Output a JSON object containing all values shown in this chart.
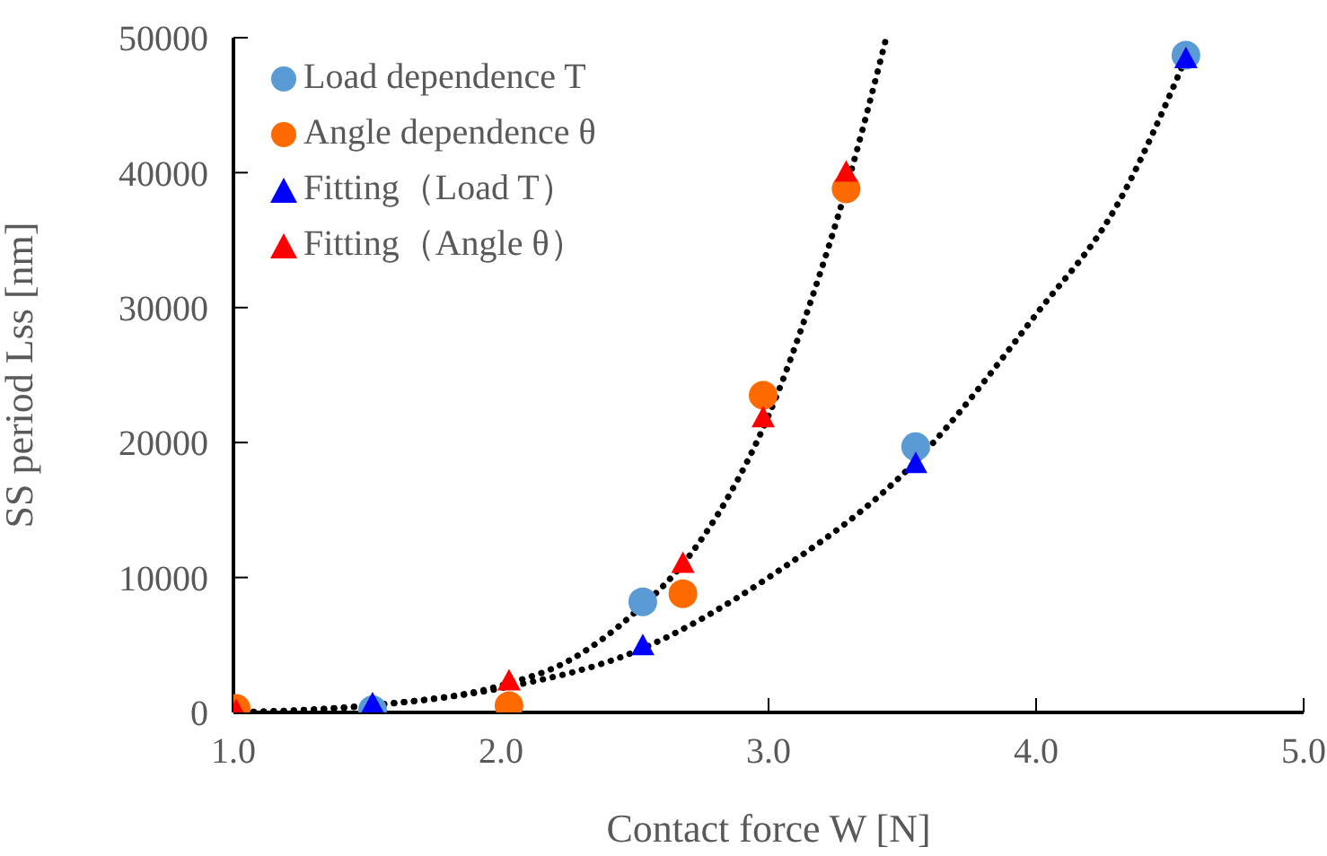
{
  "chart_data": {
    "type": "scatter",
    "xlabel": "Contact force W [N]",
    "ylabel": "SS period Lss [nm]",
    "xlim": [
      1,
      5
    ],
    "xticks": [
      {
        "value": 1,
        "label": "1.0"
      },
      {
        "value": 2,
        "label": "2.0"
      },
      {
        "value": 3,
        "label": "3.0"
      },
      {
        "value": 4,
        "label": "4.0"
      },
      {
        "value": 5,
        "label": "5.0"
      }
    ],
    "ylim": [
      0,
      50000
    ],
    "yticks": [
      0,
      10000,
      20000,
      30000,
      40000,
      50000
    ],
    "grid": false,
    "legend": "top left",
    "series": [
      {
        "name": "Load dependence T",
        "type": "scatter",
        "marker": "circle",
        "color": "#5b9bd5",
        "x": [
          1.52,
          2.53,
          3.55,
          4.56
        ],
        "values": [
          200,
          8200,
          19700,
          48700
        ]
      },
      {
        "name": "Angle dependence θ",
        "type": "scatter",
        "marker": "circle",
        "color": "#ff6a00",
        "x": [
          1.01,
          2.03,
          2.68,
          2.98,
          3.29
        ],
        "values": [
          300,
          500,
          8800,
          23500,
          38800
        ]
      },
      {
        "name": "Fitting（Load T）",
        "type": "scatter",
        "marker": "triangle",
        "color": "#0000ff",
        "x": [
          1.52,
          2.53,
          3.55,
          4.56
        ],
        "values": [
          600,
          4900,
          18400,
          48400
        ]
      },
      {
        "name": "Fitting（Angle θ）",
        "type": "scatter",
        "marker": "triangle",
        "color": "#ff0000",
        "x": [
          1.01,
          2.03,
          2.68,
          2.98,
          3.29
        ],
        "values": [
          100,
          2300,
          11000,
          21800,
          40000
        ]
      },
      {
        "type": "line",
        "marker": "none",
        "line_style": "dotted",
        "color": "#000000",
        "x": [
          1.0,
          1.5,
          2.0,
          2.25,
          2.5,
          2.7,
          2.85,
          3.0,
          3.15,
          3.3,
          3.44
        ],
        "values": [
          0,
          500,
          2000,
          3800,
          7400,
          11500,
          16000,
          22000,
          30000,
          39500,
          50000
        ]
      },
      {
        "type": "line",
        "marker": "none",
        "line_style": "dotted",
        "color": "#000000",
        "x": [
          1.0,
          1.5,
          2.0,
          2.5,
          3.0,
          3.55,
          4.0,
          4.3,
          4.56
        ],
        "values": [
          0,
          500,
          1800,
          4500,
          10000,
          18600,
          29500,
          37500,
          48500
        ]
      }
    ]
  }
}
